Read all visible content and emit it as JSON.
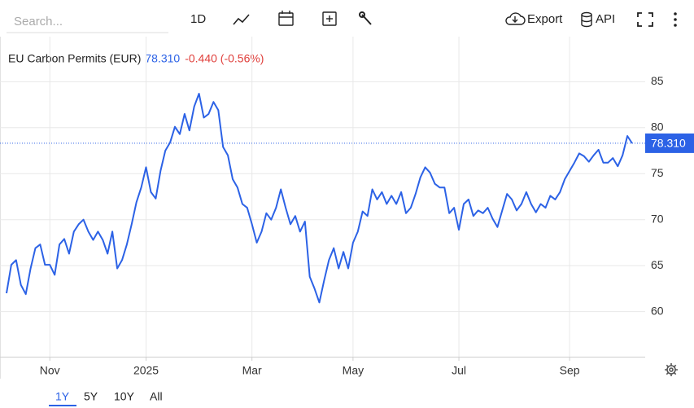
{
  "toolbar": {
    "search_placeholder": "Search...",
    "interval": "1D",
    "export": "Export",
    "api": "API"
  },
  "ranges": [
    "1Y",
    "5Y",
    "10Y",
    "All"
  ],
  "chart_data": {
    "type": "line",
    "title": "EU Carbon Permits (EUR)",
    "price": {
      "value": 78.31,
      "label": "78.310"
    },
    "change": "-0.440 (-0.56%)",
    "categories": [
      null,
      null,
      null,
      null,
      null,
      null,
      null,
      null,
      null,
      "Nov",
      null,
      null,
      null,
      null,
      null,
      null,
      null,
      null,
      null,
      null,
      null,
      null,
      null,
      null,
      null,
      null,
      null,
      null,
      null,
      "2025",
      null,
      null,
      null,
      null,
      null,
      null,
      null,
      null,
      null,
      null,
      null,
      null,
      null,
      null,
      null,
      null,
      null,
      null,
      null,
      null,
      null,
      "Mar",
      null,
      null,
      null,
      null,
      null,
      null,
      null,
      null,
      null,
      null,
      null,
      null,
      null,
      null,
      null,
      null,
      null,
      null,
      null,
      null,
      "May",
      null,
      null,
      null,
      null,
      null,
      null,
      null,
      null,
      null,
      null,
      null,
      null,
      null,
      null,
      null,
      null,
      null,
      null,
      null,
      null,
      null,
      "Jul",
      null,
      null,
      null,
      null,
      null,
      null,
      null,
      null,
      null,
      null,
      null,
      null,
      null,
      null,
      null,
      null,
      null,
      null,
      null,
      null,
      null,
      null,
      "Sep",
      null,
      null,
      null,
      null,
      null,
      null,
      null,
      null,
      null,
      null,
      null,
      null,
      null
    ],
    "series": [
      {
        "name": "EU Carbon Permits",
        "color": "#2c62e6",
        "values": [
          62.0,
          65.1,
          65.6,
          62.9,
          61.9,
          64.7,
          66.9,
          67.3,
          65.1,
          65.1,
          64.0,
          67.3,
          67.9,
          66.3,
          68.7,
          69.5,
          70.0,
          68.7,
          67.8,
          68.7,
          67.8,
          66.3,
          68.7,
          64.7,
          65.6,
          67.3,
          69.5,
          71.9,
          73.5,
          75.7,
          73.0,
          72.3,
          75.3,
          77.5,
          78.4,
          80.1,
          79.3,
          81.5,
          79.7,
          82.3,
          83.7,
          81.1,
          81.5,
          82.8,
          81.9,
          77.9,
          77.0,
          74.4,
          73.5,
          71.7,
          71.3,
          69.5,
          67.5,
          68.7,
          70.7,
          70.0,
          71.3,
          73.3,
          71.3,
          69.5,
          70.4,
          68.7,
          69.8,
          63.8,
          62.5,
          61.0,
          63.4,
          65.6,
          66.9,
          64.7,
          66.5,
          64.7,
          67.5,
          68.7,
          70.9,
          70.4,
          73.3,
          72.2,
          73.0,
          71.7,
          72.6,
          71.7,
          73.0,
          70.7,
          71.3,
          72.8,
          74.6,
          75.7,
          75.1,
          73.9,
          73.5,
          73.5,
          70.7,
          71.3,
          68.9,
          71.7,
          72.2,
          70.4,
          71.0,
          70.7,
          71.3,
          70.1,
          69.2,
          71.0,
          72.8,
          72.2,
          71.0,
          71.7,
          73.0,
          71.7,
          70.8,
          71.7,
          71.3,
          72.6,
          72.2,
          73.0,
          74.4,
          75.3,
          76.2,
          77.2,
          76.9,
          76.3,
          77.0,
          77.6,
          76.2,
          76.2,
          76.7,
          75.8,
          77.0,
          79.1,
          78.3
        ]
      }
    ],
    "ylim": [
      55.1,
      89.9
    ],
    "yticks": [
      60,
      65,
      70,
      75,
      80,
      85
    ],
    "grid": true
  }
}
